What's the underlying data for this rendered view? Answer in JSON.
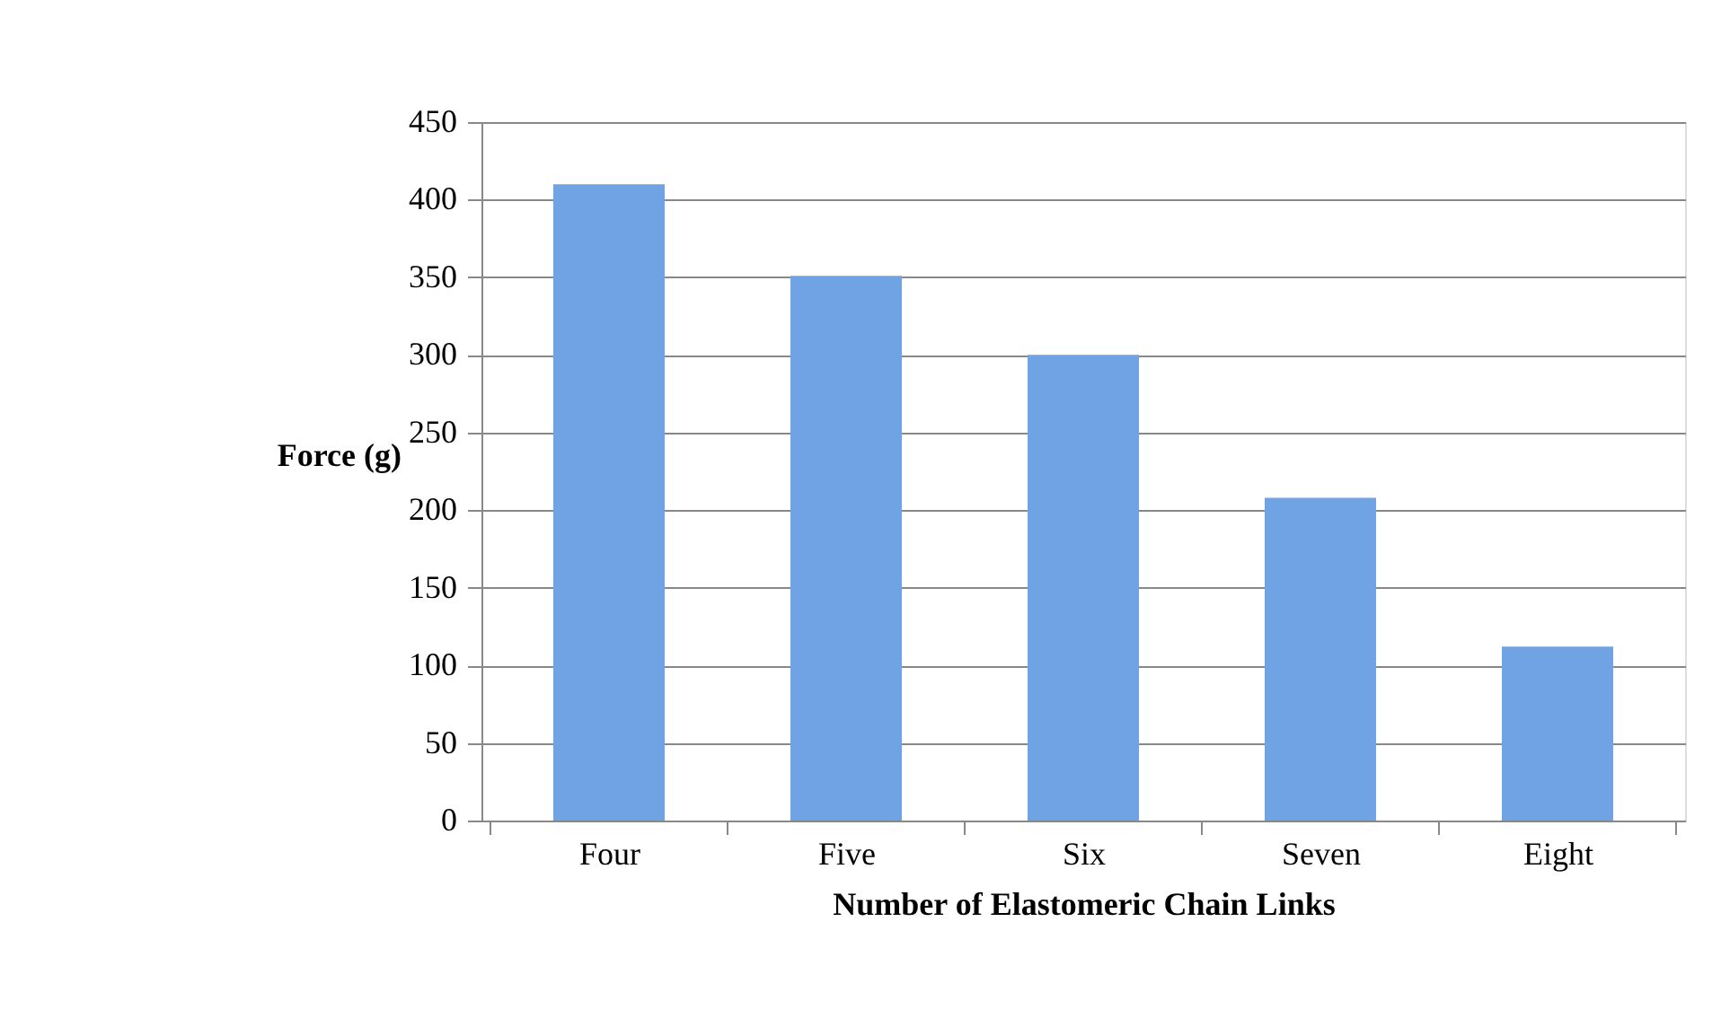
{
  "chart_data": {
    "type": "bar",
    "xlabel": "Number of Elastomeric Chain Links",
    "ylabel": "Force (g)",
    "categories": [
      "Four",
      "Five",
      "Six",
      "Seven",
      "Eight"
    ],
    "values": [
      410,
      351,
      300,
      208,
      112
    ],
    "color": "#6fa3e4",
    "ylim": [
      0,
      450
    ],
    "yticks": [
      0,
      50,
      100,
      150,
      200,
      250,
      300,
      350,
      400,
      450
    ],
    "grid": "y"
  }
}
